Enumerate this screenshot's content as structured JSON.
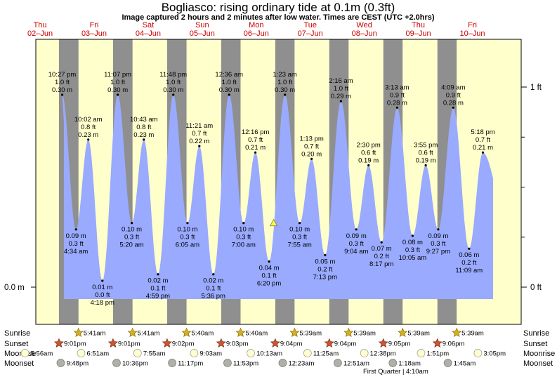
{
  "title": "Bogliasco: rising  ordinary tide at 0.1m (0.3ft)",
  "subtitle": "Image captured 2 hours and 2 minutes after low water. Times are CEST (UTC +2.0hrs)",
  "colors": {
    "day": "#ffffcc",
    "night": "#8f8f8f",
    "tide": "#99aaff",
    "day_label": "#cc0000",
    "sunrise": "#d4b020",
    "sunset": "#cc5533",
    "moonrise": "#ffffcc",
    "moonset": "#b0b0a8",
    "now_marker": "#ffff33"
  },
  "chart_data": {
    "type": "area",
    "days": [
      {
        "dow": "Thu",
        "date": "02–Jun"
      },
      {
        "dow": "Fri",
        "date": "03–Jun"
      },
      {
        "dow": "Sat",
        "date": "04–Jun"
      },
      {
        "dow": "Sun",
        "date": "05–Jun"
      },
      {
        "dow": "Mon",
        "date": "06–Jun"
      },
      {
        "dow": "Tue",
        "date": "07–Jun"
      },
      {
        "dow": "Wed",
        "date": "08–Jun"
      },
      {
        "dow": "Thu",
        "date": "09–Jun"
      },
      {
        "dow": "Fri",
        "date": "10–Jun"
      }
    ],
    "left_axis": {
      "label": "0.0 m"
    },
    "right_axis": {
      "labels": [
        "1 ft",
        "0 ft"
      ]
    },
    "tides": [
      {
        "day": 0,
        "time": "10:27 pm",
        "ft": "1.0 ft",
        "m": "0.30 m",
        "type": "high",
        "height_m": 0.3
      },
      {
        "day": 1,
        "time": "4:34 am",
        "ft": "0.3 ft",
        "m": "0.09 m",
        "type": "low",
        "height_m": 0.09
      },
      {
        "day": 1,
        "time": "10:02 am",
        "ft": "0.8 ft",
        "m": "0.23 m",
        "type": "high",
        "height_m": 0.23
      },
      {
        "day": 1,
        "time": "4:18 pm",
        "ft": "0.0 ft",
        "m": "0.01 m",
        "type": "low",
        "height_m": 0.01
      },
      {
        "day": 1,
        "time": "11:07 pm",
        "ft": "1.0 ft",
        "m": "0.30 m",
        "type": "high",
        "height_m": 0.3
      },
      {
        "day": 2,
        "time": "5:20 am",
        "ft": "0.3 ft",
        "m": "0.10 m",
        "type": "low",
        "height_m": 0.1
      },
      {
        "day": 2,
        "time": "10:43 am",
        "ft": "0.8 ft",
        "m": "0.23 m",
        "type": "high",
        "height_m": 0.23
      },
      {
        "day": 2,
        "time": "4:59 pm",
        "ft": "0.1 ft",
        "m": "0.02 m",
        "type": "low",
        "height_m": 0.02
      },
      {
        "day": 2,
        "time": "11:48 pm",
        "ft": "1.0 ft",
        "m": "0.30 m",
        "type": "high",
        "height_m": 0.3
      },
      {
        "day": 3,
        "time": "6:05 am",
        "ft": "0.3 ft",
        "m": "0.10 m",
        "type": "low",
        "height_m": 0.1
      },
      {
        "day": 3,
        "time": "11:21 am",
        "ft": "0.7 ft",
        "m": "0.22 m",
        "type": "high",
        "height_m": 0.22
      },
      {
        "day": 3,
        "time": "5:36 pm",
        "ft": "0.1 ft",
        "m": "0.02 m",
        "type": "low",
        "height_m": 0.02
      },
      {
        "day": 4,
        "time": "12:36 am",
        "ft": "1.0 ft",
        "m": "0.30 m",
        "type": "high",
        "height_m": 0.3
      },
      {
        "day": 4,
        "time": "7:00 am",
        "ft": "0.3 ft",
        "m": "0.10 m",
        "type": "low",
        "height_m": 0.1
      },
      {
        "day": 4,
        "time": "12:16 pm",
        "ft": "0.7 ft",
        "m": "0.21 m",
        "type": "high",
        "height_m": 0.21
      },
      {
        "day": 4,
        "time": "6:20 pm",
        "ft": "0.1 ft",
        "m": "0.04 m",
        "type": "low",
        "height_m": 0.04
      },
      {
        "day": 5,
        "time": "1:23 am",
        "ft": "1.0 ft",
        "m": "0.30 m",
        "type": "high",
        "height_m": 0.3
      },
      {
        "day": 5,
        "time": "7:55 am",
        "ft": "0.3 ft",
        "m": "0.10 m",
        "type": "low",
        "height_m": 0.1
      },
      {
        "day": 5,
        "time": "1:13 pm",
        "ft": "0.7 ft",
        "m": "0.20 m",
        "type": "high",
        "height_m": 0.2
      },
      {
        "day": 5,
        "time": "7:13 pm",
        "ft": "0.2 ft",
        "m": "0.05 m",
        "type": "low",
        "height_m": 0.05
      },
      {
        "day": 6,
        "time": "2:16 am",
        "ft": "1.0 ft",
        "m": "0.29 m",
        "type": "high",
        "height_m": 0.29
      },
      {
        "day": 6,
        "time": "9:04 am",
        "ft": "0.3 ft",
        "m": "0.09 m",
        "type": "low",
        "height_m": 0.09
      },
      {
        "day": 6,
        "time": "2:30 pm",
        "ft": "0.6 ft",
        "m": "0.19 m",
        "type": "high",
        "height_m": 0.19
      },
      {
        "day": 6,
        "time": "8:17 pm",
        "ft": "0.2 ft",
        "m": "0.07 m",
        "type": "low",
        "height_m": 0.07
      },
      {
        "day": 7,
        "time": "3:13 am",
        "ft": "0.9 ft",
        "m": "0.28 m",
        "type": "high",
        "height_m": 0.28
      },
      {
        "day": 7,
        "time": "10:05 am",
        "ft": "0.3 ft",
        "m": "0.08 m",
        "type": "low",
        "height_m": 0.08
      },
      {
        "day": 7,
        "time": "3:55 pm",
        "ft": "0.6 ft",
        "m": "0.19 m",
        "type": "high",
        "height_m": 0.19
      },
      {
        "day": 7,
        "time": "9:27 pm",
        "ft": "0.3 ft",
        "m": "0.09 m",
        "type": "low",
        "height_m": 0.09
      },
      {
        "day": 8,
        "time": "4:09 am",
        "ft": "0.9 ft",
        "m": "0.28 m",
        "type": "high",
        "height_m": 0.28
      },
      {
        "day": 8,
        "time": "11:09 am",
        "ft": "0.2 ft",
        "m": "0.06 m",
        "type": "low",
        "height_m": 0.06
      },
      {
        "day": 8,
        "time": "5:18 pm",
        "ft": "0.7 ft",
        "m": "0.21 m",
        "type": "high",
        "height_m": 0.21
      }
    ],
    "now": {
      "day": 4,
      "time": "8:22 pm",
      "height_m": 0.1
    },
    "astro": {
      "row_labels": {
        "sunrise": "Sunrise",
        "sunset": "Sunset",
        "moonrise": "Moonrise",
        "moonset": "Moonset"
      },
      "sunrise": [
        {
          "day": 1,
          "time": "5:41am"
        },
        {
          "day": 2,
          "time": "5:41am"
        },
        {
          "day": 3,
          "time": "5:40am"
        },
        {
          "day": 4,
          "time": "5:40am"
        },
        {
          "day": 5,
          "time": "5:39am"
        },
        {
          "day": 6,
          "time": "5:39am"
        },
        {
          "day": 7,
          "time": "5:39am"
        },
        {
          "day": 8,
          "time": "5:39am"
        }
      ],
      "sunset": [
        {
          "day": 0,
          "time": "9:01pm"
        },
        {
          "day": 1,
          "time": "9:01pm"
        },
        {
          "day": 2,
          "time": "9:02pm"
        },
        {
          "day": 3,
          "time": "9:03pm"
        },
        {
          "day": 4,
          "time": "9:04pm"
        },
        {
          "day": 5,
          "time": "9:04pm"
        },
        {
          "day": 6,
          "time": "9:05pm"
        },
        {
          "day": 7,
          "time": "9:06pm"
        }
      ],
      "moonrise": [
        {
          "day": 0,
          "time": "5:56am"
        },
        {
          "day": 1,
          "time": "6:51am"
        },
        {
          "day": 2,
          "time": "7:55am"
        },
        {
          "day": 3,
          "time": "9:03am"
        },
        {
          "day": 4,
          "time": "10:13am"
        },
        {
          "day": 5,
          "time": "11:25am"
        },
        {
          "day": 6,
          "time": "12:38pm"
        },
        {
          "day": 7,
          "time": "1:51pm"
        },
        {
          "day": 8,
          "time": "3:05pm"
        }
      ],
      "moonset": [
        {
          "day": 0,
          "time": "9:48pm"
        },
        {
          "day": 1,
          "time": "10:36pm"
        },
        {
          "day": 2,
          "time": "11:17pm"
        },
        {
          "day": 3,
          "time": "11:53pm"
        },
        {
          "day": 5,
          "time": "12:23am"
        },
        {
          "day": 6,
          "time": "12:51am"
        },
        {
          "day": 7,
          "time": "1:18am"
        },
        {
          "day": 8,
          "time": "1:45am"
        }
      ],
      "phase": "First Quarter | 4:10am"
    }
  }
}
